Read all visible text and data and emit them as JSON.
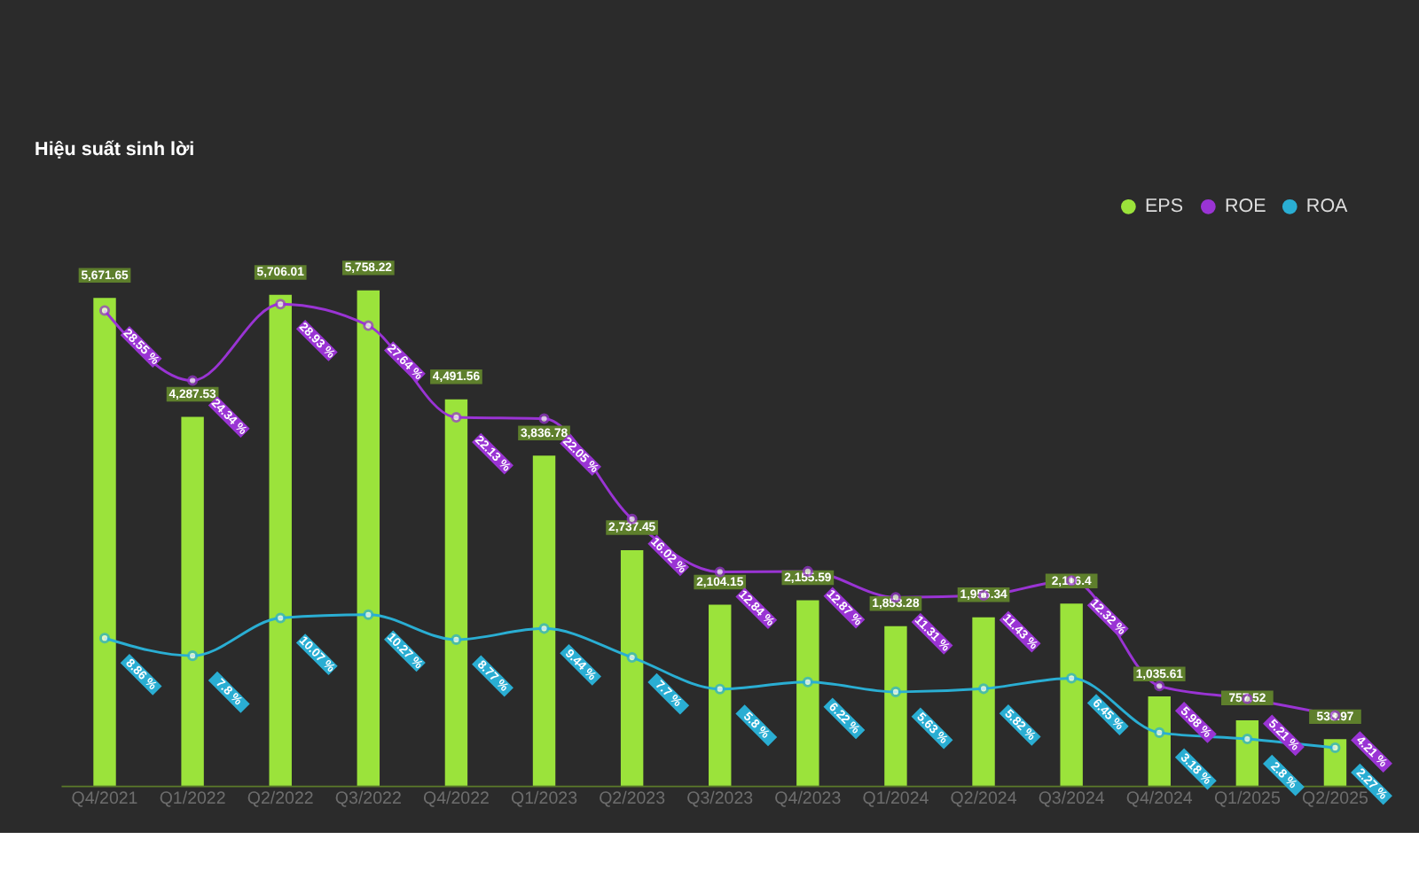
{
  "chart_data": {
    "type": "bar",
    "title": "Hiệu suất sinh lời",
    "categories": [
      "Q4/2021",
      "Q1/2022",
      "Q2/2022",
      "Q3/2022",
      "Q4/2022",
      "Q1/2023",
      "Q2/2023",
      "Q3/2023",
      "Q4/2023",
      "Q1/2024",
      "Q2/2024",
      "Q3/2024",
      "Q4/2024",
      "Q1/2025",
      "Q2/2025"
    ],
    "series": [
      {
        "name": "EPS",
        "color": "#9be33b",
        "values": [
          5671.65,
          4287.53,
          5706.01,
          5758.22,
          4491.56,
          3836.78,
          2737.45,
          2104.15,
          2155.59,
          1853.28,
          1956.34,
          2116.4,
          1035.61,
          757.52,
          538.97
        ],
        "value_labels": [
          "5,671.65",
          "4,287.53",
          "5,706.01",
          "5,758.22",
          "4,491.56",
          "3,836.78",
          "2,737.45",
          "2,104.15",
          "2,155.59",
          "1,853.28",
          "1,956.34",
          "2,116.4",
          "1,035.61",
          "757.52",
          "538.97"
        ]
      },
      {
        "name": "ROE",
        "type": "line",
        "axis": "y2",
        "color": "#9a34d4",
        "values": [
          28.55,
          24.34,
          28.93,
          27.64,
          22.13,
          22.05,
          16.02,
          12.84,
          12.87,
          11.31,
          11.43,
          12.32,
          5.98,
          5.21,
          4.21
        ],
        "value_labels": [
          "28.55 %",
          "24.34 %",
          "28.93 %",
          "27.64 %",
          "22.13 %",
          "22.05 %",
          "16.02 %",
          "12.84 %",
          "12.87 %",
          "11.31 %",
          "11.43 %",
          "12.32 %",
          "5.98 %",
          "5.21 %",
          "4.21 %"
        ]
      },
      {
        "name": "ROA",
        "type": "line",
        "axis": "y2",
        "color": "#2aaed3",
        "values": [
          8.86,
          7.8,
          10.07,
          10.27,
          8.77,
          9.44,
          7.7,
          5.8,
          6.22,
          5.63,
          5.82,
          6.45,
          3.18,
          2.8,
          2.27
        ],
        "value_labels": [
          "8.86 %",
          "7.8 %",
          "10.07 %",
          "10.27 %",
          "8.77 %",
          "9.44 %",
          "7.7 %",
          "5.8 %",
          "6.22 %",
          "5.63 %",
          "5.82 %",
          "6.45 %",
          "3.18 %",
          "2.8 %",
          "2.27 %"
        ]
      }
    ],
    "data_labels": true,
    "legend": "top right",
    "marker": "circle",
    "line_style": "solid",
    "grid": false,
    "tick_labels": "x"
  }
}
